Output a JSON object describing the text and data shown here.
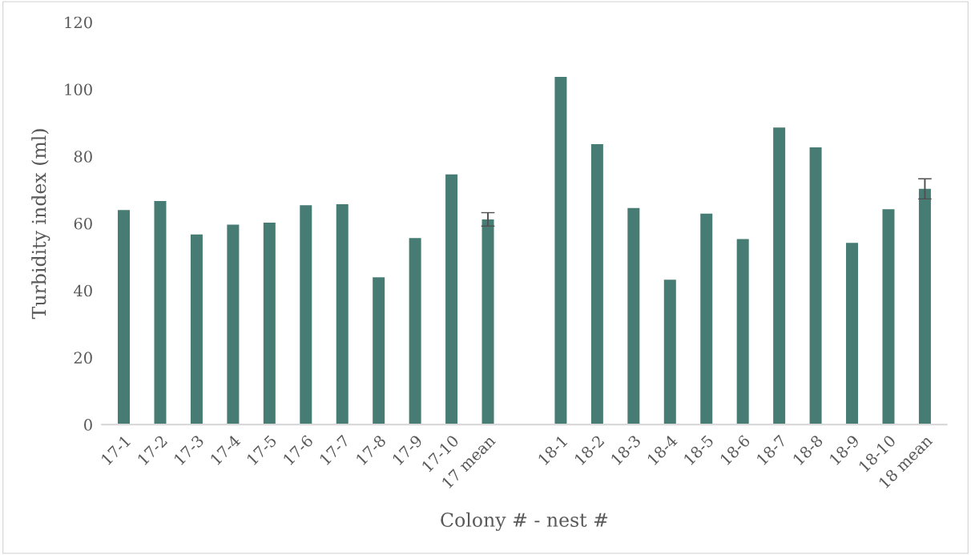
{
  "chart_data": {
    "type": "bar",
    "xlabel": "Colony # - nest #",
    "ylabel": "Turbidity index (ml)",
    "categories": [
      "17-1",
      "17-2",
      "17-3",
      "17-4",
      "17-5",
      "17-6",
      "17-7",
      "17-8",
      "17-9",
      "17-10",
      "17 mean",
      null,
      "18-1",
      "18-2",
      "18-3",
      "18-4",
      "18-5",
      "18-6",
      "18-7",
      "18-8",
      "18-9",
      "18-10",
      "18 mean"
    ],
    "values": [
      64.0,
      66.7,
      56.7,
      59.6,
      60.2,
      65.4,
      65.7,
      43.9,
      55.6,
      74.6,
      61.2,
      null,
      103.7,
      83.6,
      64.6,
      43.2,
      62.9,
      55.3,
      88.6,
      82.7,
      54.2,
      64.2,
      70.3
    ],
    "errors": [
      null,
      null,
      null,
      null,
      null,
      null,
      null,
      null,
      null,
      null,
      2,
      null,
      null,
      null,
      null,
      null,
      null,
      null,
      null,
      null,
      null,
      null,
      3
    ],
    "color": "#467c73",
    "ylim": [
      0,
      120
    ],
    "yticks": [
      0,
      20,
      40,
      60,
      80,
      100,
      120
    ],
    "grid": false,
    "legend": false
  }
}
